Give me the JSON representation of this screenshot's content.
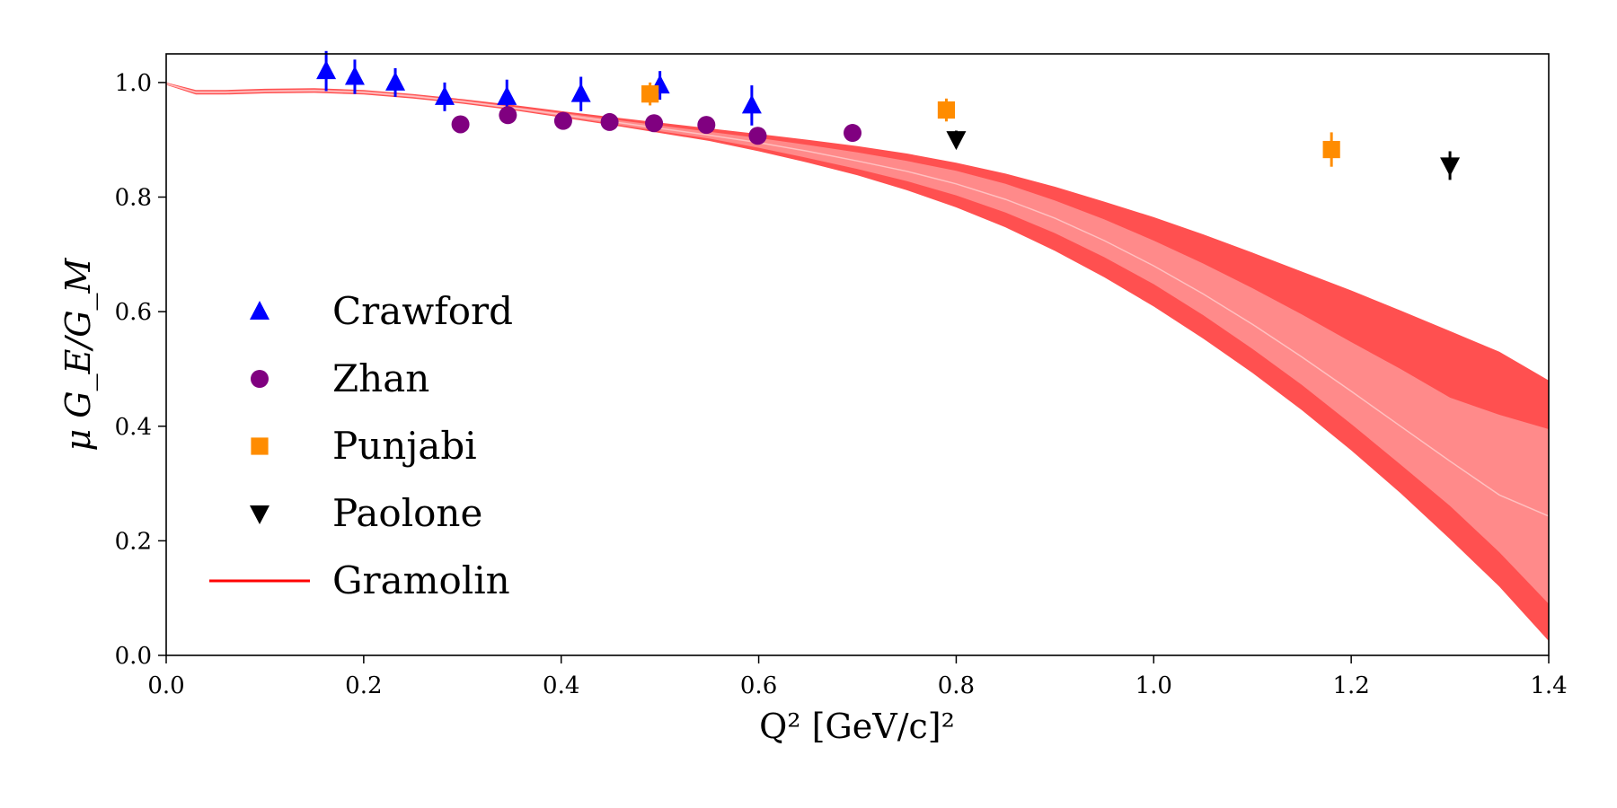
{
  "chart_data": {
    "type": "scatter",
    "xlabel": "Q² [GeV/c]²",
    "ylabel": "μ G_E/G_M",
    "xlim": [
      0.0,
      1.4
    ],
    "ylim": [
      0.0,
      1.05
    ],
    "x_ticks": [
      "0.0",
      "0.2",
      "0.4",
      "0.6",
      "0.8",
      "1.0",
      "1.2",
      "1.4"
    ],
    "y_ticks": [
      "0.0",
      "0.2",
      "0.4",
      "0.6",
      "0.8",
      "1.0"
    ],
    "legend_placement": "center-left",
    "series": [
      {
        "name": "Crawford",
        "marker": "triangle-up",
        "color": "#0000ff",
        "points": [
          {
            "x": 0.162,
            "y": 1.02,
            "err": 0.035
          },
          {
            "x": 0.191,
            "y": 1.01,
            "err": 0.03
          },
          {
            "x": 0.232,
            "y": 1.0,
            "err": 0.025
          },
          {
            "x": 0.282,
            "y": 0.975,
            "err": 0.025
          },
          {
            "x": 0.345,
            "y": 0.975,
            "err": 0.03
          },
          {
            "x": 0.42,
            "y": 0.98,
            "err": 0.03
          },
          {
            "x": 0.5,
            "y": 0.995,
            "err": 0.025
          },
          {
            "x": 0.593,
            "y": 0.96,
            "err": 0.035
          }
        ]
      },
      {
        "name": "Zhan",
        "marker": "circle",
        "color": "#800080",
        "points": [
          {
            "x": 0.298,
            "y": 0.927,
            "err": 0.012
          },
          {
            "x": 0.346,
            "y": 0.943,
            "err": 0.012
          },
          {
            "x": 0.402,
            "y": 0.933,
            "err": 0.01
          },
          {
            "x": 0.449,
            "y": 0.931,
            "err": 0.01
          },
          {
            "x": 0.494,
            "y": 0.929,
            "err": 0.01
          },
          {
            "x": 0.547,
            "y": 0.926,
            "err": 0.01
          },
          {
            "x": 0.599,
            "y": 0.907,
            "err": 0.012
          },
          {
            "x": 0.695,
            "y": 0.912,
            "err": 0.012
          }
        ]
      },
      {
        "name": "Punjabi",
        "marker": "square",
        "color": "#ff8c00",
        "points": [
          {
            "x": 0.49,
            "y": 0.98,
            "err": 0.02
          },
          {
            "x": 0.79,
            "y": 0.952,
            "err": 0.02
          },
          {
            "x": 1.18,
            "y": 0.883,
            "err": 0.03
          }
        ]
      },
      {
        "name": "Paolone",
        "marker": "triangle-down",
        "color": "#000000",
        "points": [
          {
            "x": 0.8,
            "y": 0.901,
            "err": 0.015
          },
          {
            "x": 1.3,
            "y": 0.855,
            "err": 0.025
          }
        ]
      }
    ],
    "band": {
      "name": "Gramolin",
      "color": "#ff0000",
      "fill_outer": "#ff5050",
      "fill_inner": "#ff8a8a",
      "x": [
        0.0,
        0.03,
        0.06,
        0.1,
        0.15,
        0.2,
        0.25,
        0.3,
        0.35,
        0.4,
        0.45,
        0.5,
        0.55,
        0.6,
        0.65,
        0.7,
        0.75,
        0.8,
        0.85,
        0.9,
        0.95,
        1.0,
        1.05,
        1.1,
        1.15,
        1.2,
        1.25,
        1.3,
        1.35,
        1.4
      ],
      "center": [
        0.998,
        0.983,
        0.983,
        0.985,
        0.986,
        0.983,
        0.976,
        0.967,
        0.956,
        0.944,
        0.932,
        0.92,
        0.908,
        0.895,
        0.88,
        0.863,
        0.845,
        0.823,
        0.796,
        0.763,
        0.724,
        0.68,
        0.631,
        0.578,
        0.521,
        0.461,
        0.4,
        0.339,
        0.28,
        0.243
      ],
      "inner_low": [
        0.997,
        0.981,
        0.981,
        0.983,
        0.984,
        0.981,
        0.974,
        0.965,
        0.954,
        0.941,
        0.928,
        0.915,
        0.902,
        0.886,
        0.868,
        0.849,
        0.828,
        0.803,
        0.773,
        0.737,
        0.695,
        0.648,
        0.594,
        0.535,
        0.472,
        0.404,
        0.333,
        0.261,
        0.18,
        0.09
      ],
      "inner_high": [
        0.999,
        0.985,
        0.985,
        0.987,
        0.988,
        0.985,
        0.978,
        0.969,
        0.958,
        0.947,
        0.936,
        0.925,
        0.914,
        0.903,
        0.891,
        0.878,
        0.863,
        0.846,
        0.823,
        0.794,
        0.761,
        0.724,
        0.684,
        0.641,
        0.595,
        0.547,
        0.5,
        0.45,
        0.42,
        0.395
      ],
      "outer_low": [
        0.996,
        0.979,
        0.979,
        0.981,
        0.982,
        0.979,
        0.972,
        0.963,
        0.952,
        0.939,
        0.926,
        0.912,
        0.898,
        0.88,
        0.86,
        0.838,
        0.812,
        0.782,
        0.747,
        0.706,
        0.66,
        0.609,
        0.553,
        0.493,
        0.428,
        0.358,
        0.283,
        0.203,
        0.12,
        0.025
      ],
      "outer_high": [
        1.0,
        0.987,
        0.987,
        0.989,
        0.99,
        0.987,
        0.98,
        0.971,
        0.961,
        0.95,
        0.94,
        0.93,
        0.92,
        0.91,
        0.9,
        0.889,
        0.876,
        0.86,
        0.841,
        0.818,
        0.792,
        0.765,
        0.735,
        0.703,
        0.67,
        0.637,
        0.602,
        0.566,
        0.53,
        0.48
      ]
    }
  }
}
